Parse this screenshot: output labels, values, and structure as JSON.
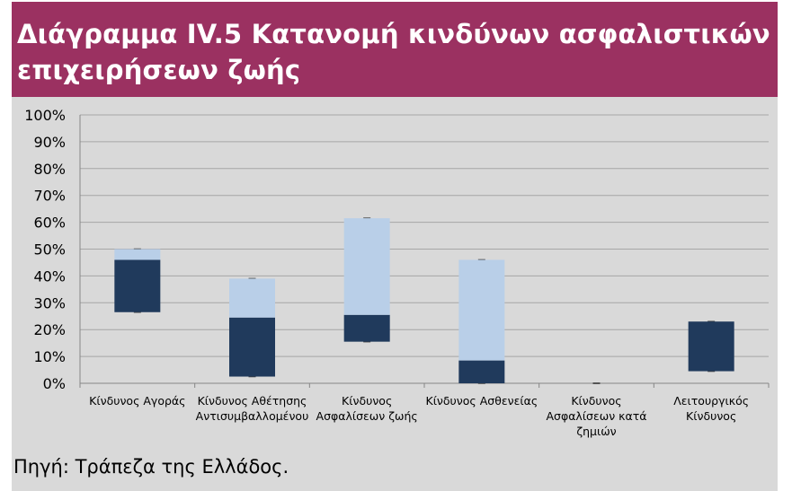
{
  "header": {
    "title": "Διάγραμμα IV.5 Κατανομή κινδύνων ασφαλιστικών επιχειρήσεων ζωής"
  },
  "footer": {
    "source": "Πηγή: Τράπεζα της Ελλάδος."
  },
  "colors": {
    "title_bg": "#9b3161",
    "panel_bg": "#d9d9d9",
    "dark_box": "#203a5c",
    "light_box": "#b9cfe8",
    "grid": "#a6a6a6"
  },
  "chart_data": {
    "type": "box",
    "title": "",
    "ylim": [
      0,
      100
    ],
    "y_unit": "%",
    "y_ticks": [
      "0%",
      "10%",
      "20%",
      "30%",
      "40%",
      "50%",
      "60%",
      "70%",
      "80%",
      "90%",
      "100%"
    ],
    "grid": true,
    "categories": [
      [
        "Κίνδυνος Αγοράς"
      ],
      [
        "Κίνδυνος Αθέτησης",
        "Αντισυμβαλλομένου"
      ],
      [
        "Κίνδυνος",
        "Ασφαλίσεων ζωής"
      ],
      [
        "Κίνδυνος Ασθενείας"
      ],
      [
        "Κίνδυνος",
        "Ασφαλίσεων κατά",
        "ζημιών"
      ],
      [
        "Λειτουργικός",
        "Κίνδυνος"
      ]
    ],
    "boxes": [
      {
        "min": 26.5,
        "q1": 26.5,
        "median": 46,
        "q3": 50,
        "max": 50
      },
      {
        "min": 2.5,
        "q1": 2.5,
        "median": 24.5,
        "q3": 39,
        "max": 39
      },
      {
        "min": 15.5,
        "q1": 15.5,
        "median": 25.5,
        "q3": 61.5,
        "max": 61.5
      },
      {
        "min": 0,
        "q1": 0,
        "median": 8.5,
        "q3": 46,
        "max": 46
      },
      {
        "min": 0,
        "q1": 0,
        "median": 0,
        "q3": 0,
        "max": 0
      },
      {
        "min": 4.5,
        "q1": 4.5,
        "median": 23,
        "q3": 23,
        "max": 23
      }
    ]
  }
}
